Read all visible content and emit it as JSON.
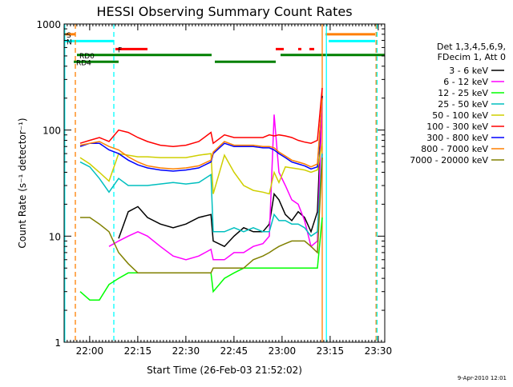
{
  "chart_data": {
    "type": "line",
    "title": "HESSI Observing Summary Count Rates",
    "xlabel": "Start Time (26-Feb-03 21:52:02)",
    "ylabel": "Count Rate (s⁻¹ detector⁻¹)",
    "footer": "9-Apr-2010 12:01",
    "yscale": "log",
    "ylim": [
      1,
      1000
    ],
    "xlim_minutes": [
      0,
      100
    ],
    "x_unit": "minutes after 21:52:02",
    "grid": false,
    "legend_placement": "right",
    "x_ticks": [
      {
        "label": "22:00",
        "x": 7.97
      },
      {
        "label": "22:15",
        "x": 22.97
      },
      {
        "label": "22:30",
        "x": 37.97
      },
      {
        "label": "22:45",
        "x": 52.97
      },
      {
        "label": "23:00",
        "x": 67.97
      },
      {
        "label": "23:15",
        "x": 82.97
      },
      {
        "label": "23:30",
        "x": 97.97
      }
    ],
    "y_ticks": [
      {
        "label": "1",
        "y": 1
      },
      {
        "label": "10",
        "y": 10
      },
      {
        "label": "100",
        "y": 100
      },
      {
        "label": "1000",
        "y": 1000
      }
    ],
    "legend_header": [
      "Det 1,3,4,5,6,9,",
      "FDecim 1, Att 0"
    ],
    "flags": [
      {
        "name": "S",
        "color": "#ff7f00",
        "y": 800,
        "segments": [
          [
            0,
            3.5
          ],
          [
            81.5,
            97
          ]
        ]
      },
      {
        "name": "N",
        "color": "#00ffff",
        "y": 690,
        "segments": [
          [
            0,
            15.5
          ],
          [
            82.5,
            97
          ]
        ]
      },
      {
        "name": "F",
        "color": "#ff0000",
        "y": 580,
        "segments": [
          [
            16,
            26
          ],
          [
            66,
            68.5
          ],
          [
            73,
            74
          ],
          [
            76.5,
            78
          ]
        ]
      },
      {
        "name": "RD0",
        "color": "#008000",
        "y": 510,
        "segments": [
          [
            4,
            46
          ],
          [
            67.5,
            100
          ]
        ]
      },
      {
        "name": "RD4",
        "color": "#008000",
        "y": 440,
        "segments": [
          [
            3,
            17
          ],
          [
            47,
            66
          ]
        ]
      }
    ],
    "vlines": [
      {
        "x": 0.2,
        "color": "#00ffff",
        "dash": false
      },
      {
        "x": 3.5,
        "color": "#ff7f00",
        "dash": true
      },
      {
        "x": 15.5,
        "color": "#00ffff",
        "dash": true
      },
      {
        "x": 80.5,
        "color": "#ff7f00",
        "dash": false
      },
      {
        "x": 81.8,
        "color": "#00ffff",
        "dash": false
      },
      {
        "x": 97.3,
        "color": "#ff7f00",
        "dash": true
      },
      {
        "x": 97.6,
        "color": "#00ffff",
        "dash": true
      }
    ],
    "x": [
      5,
      8,
      11,
      14,
      17,
      20,
      23,
      26,
      30,
      34,
      38,
      42,
      45.8,
      46.5,
      50,
      53,
      56,
      59,
      62,
      64,
      65.5,
      67,
      69,
      71,
      73,
      75,
      77,
      79,
      80.5
    ],
    "series": [
      {
        "name": "3 - 6 keV",
        "color": "#000000",
        "values": [
          null,
          null,
          null,
          null,
          9.5,
          17,
          19,
          15,
          13,
          12,
          13,
          15,
          16,
          9,
          8,
          10,
          12,
          11,
          11,
          13,
          25,
          22,
          16,
          14,
          17,
          15,
          11,
          17,
          210
        ]
      },
      {
        "name": "6 - 12 keV",
        "color": "#ff00ff",
        "values": [
          null,
          null,
          null,
          8,
          9,
          10,
          11,
          10,
          8,
          6.5,
          6,
          6.5,
          7.5,
          6,
          6,
          7,
          7,
          8,
          8.5,
          10,
          140,
          40,
          30,
          22,
          20,
          14,
          8,
          9,
          200
        ]
      },
      {
        "name": "12 - 25 keV",
        "color": "#00ff00",
        "values": [
          3,
          2.5,
          2.5,
          3.5,
          4,
          4.5,
          4.5,
          4.5,
          4.5,
          4.5,
          4.5,
          4.5,
          4.5,
          3,
          4,
          4.5,
          5,
          5,
          5,
          5,
          5,
          5,
          5,
          5,
          5,
          5,
          5,
          5,
          15
        ]
      },
      {
        "name": "25 - 50 keV",
        "color": "#00bfbf",
        "values": [
          50,
          45,
          35,
          26,
          35,
          30,
          30,
          30,
          31,
          32,
          31,
          32,
          38,
          11,
          11,
          12,
          11,
          12,
          11,
          11,
          16,
          14,
          14,
          13,
          13,
          12,
          10,
          11,
          60
        ]
      },
      {
        "name": "50 - 100 keV",
        "color": "#cfcf00",
        "values": [
          55,
          48,
          40,
          33,
          60,
          58,
          56,
          56,
          55,
          55,
          55,
          58,
          60,
          25,
          58,
          40,
          30,
          27,
          26,
          25,
          40,
          32,
          45,
          44,
          43,
          42,
          40,
          42,
          75
        ]
      },
      {
        "name": "100 - 300 keV",
        "color": "#ff0000",
        "values": [
          75,
          80,
          85,
          78,
          100,
          95,
          85,
          78,
          72,
          70,
          72,
          78,
          95,
          75,
          90,
          85,
          85,
          85,
          85,
          90,
          88,
          90,
          88,
          85,
          80,
          77,
          75,
          80,
          250
        ]
      },
      {
        "name": "300 - 800 keV",
        "color": "#0000ff",
        "values": [
          70,
          75,
          75,
          65,
          60,
          52,
          47,
          44,
          42,
          41,
          42,
          44,
          50,
          60,
          75,
          70,
          70,
          70,
          68,
          68,
          65,
          60,
          55,
          50,
          48,
          46,
          43,
          45,
          200
        ]
      },
      {
        "name": "800 - 7000 keV",
        "color": "#ff7f00",
        "values": [
          72,
          75,
          78,
          70,
          65,
          56,
          50,
          46,
          44,
          43,
          44,
          46,
          52,
          62,
          78,
          72,
          72,
          72,
          70,
          70,
          68,
          62,
          57,
          52,
          50,
          48,
          45,
          48,
          200
        ]
      },
      {
        "name": "7000 - 20000 keV",
        "color": "#808000",
        "values": [
          15,
          15,
          13,
          11,
          7,
          5.5,
          4.5,
          4.5,
          4.5,
          4.5,
          4.5,
          4.5,
          4.5,
          5,
          5,
          5,
          5,
          6,
          6.5,
          7,
          7.5,
          8,
          8.5,
          9,
          9,
          9,
          8,
          7,
          55
        ]
      }
    ]
  }
}
